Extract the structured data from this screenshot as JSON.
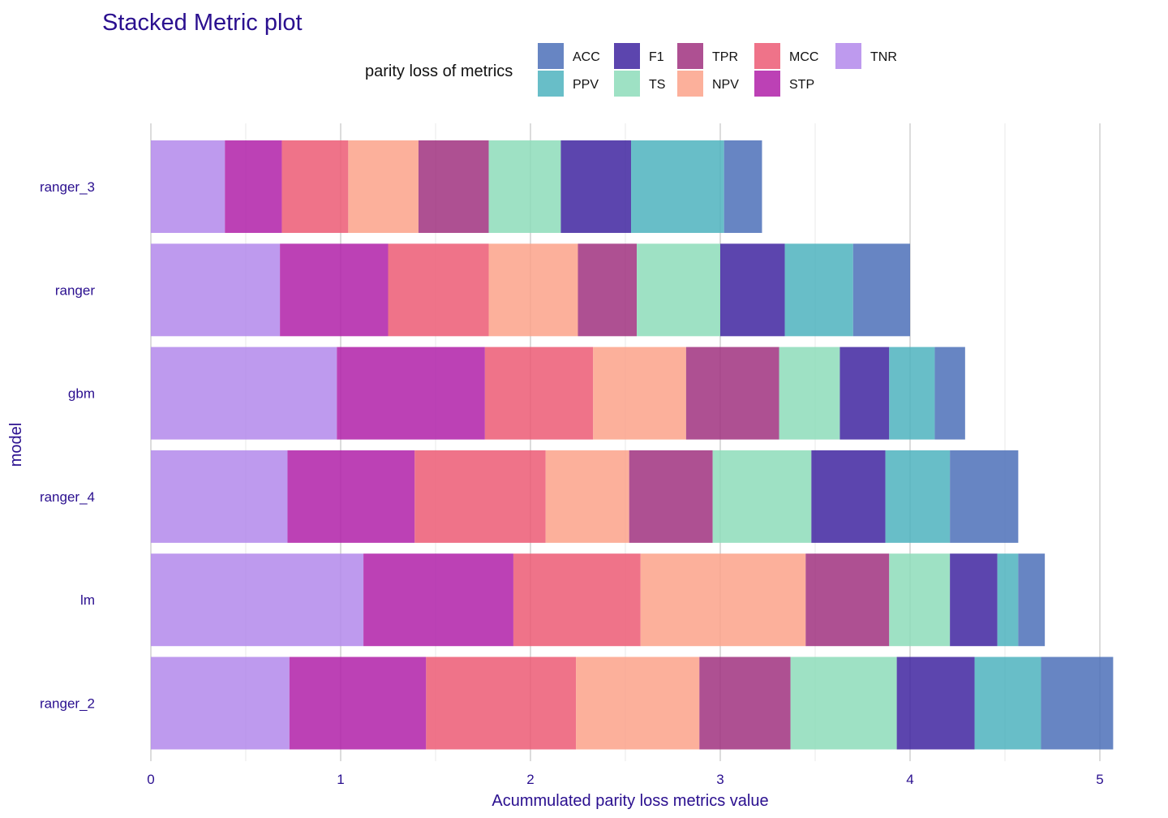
{
  "chart_data": {
    "type": "bar",
    "orientation": "horizontal",
    "stacked": true,
    "title": "Stacked Metric plot",
    "xlabel": "Acummulated parity loss metrics value",
    "ylabel": "model",
    "xlim": [
      0,
      5.1
    ],
    "xticks": [
      0,
      1,
      2,
      3,
      4,
      5
    ],
    "grid": true,
    "legend_title": "parity loss of metrics",
    "legend_position": "top",
    "categories": [
      "ranger_3",
      "ranger",
      "gbm",
      "ranger_4",
      "lm",
      "ranger_2"
    ],
    "series": [
      {
        "name": "TNR",
        "color": "#b388eb",
        "values": [
          0.39,
          0.68,
          0.98,
          0.72,
          1.12,
          0.73
        ]
      },
      {
        "name": "STP",
        "color": "#b020a8",
        "values": [
          0.3,
          0.57,
          0.78,
          0.67,
          0.79,
          0.72
        ]
      },
      {
        "name": "MCC",
        "color": "#ec5a74",
        "values": [
          0.35,
          0.53,
          0.57,
          0.69,
          0.67,
          0.79
        ]
      },
      {
        "name": "NPV",
        "color": "#fca28a",
        "values": [
          0.37,
          0.47,
          0.49,
          0.44,
          0.87,
          0.65
        ]
      },
      {
        "name": "TPR",
        "color": "#a0317f",
        "values": [
          0.37,
          0.31,
          0.49,
          0.44,
          0.44,
          0.48
        ]
      },
      {
        "name": "TS",
        "color": "#8ddcba",
        "values": [
          0.38,
          0.44,
          0.32,
          0.52,
          0.32,
          0.56
        ]
      },
      {
        "name": "F1",
        "color": "#3f24a0",
        "values": [
          0.37,
          0.34,
          0.26,
          0.39,
          0.25,
          0.41
        ]
      },
      {
        "name": "PPV",
        "color": "#4db3be",
        "values": [
          0.49,
          0.36,
          0.24,
          0.34,
          0.11,
          0.35
        ]
      },
      {
        "name": "ACC",
        "color": "#4c70b8",
        "values": [
          0.2,
          0.3,
          0.16,
          0.36,
          0.14,
          0.38
        ]
      }
    ]
  },
  "legend": {
    "title": "parity loss of metrics",
    "items": [
      {
        "label": "ACC",
        "color": "#4c70b8"
      },
      {
        "label": "F1",
        "color": "#3f24a0"
      },
      {
        "label": "TPR",
        "color": "#a0317f"
      },
      {
        "label": "MCC",
        "color": "#ec5a74"
      },
      {
        "label": "TNR",
        "color": "#b388eb"
      },
      {
        "label": "PPV",
        "color": "#4db3be"
      },
      {
        "label": "TS",
        "color": "#8ddcba"
      },
      {
        "label": "NPV",
        "color": "#fca28a"
      },
      {
        "label": "STP",
        "color": "#b020a8"
      }
    ]
  }
}
